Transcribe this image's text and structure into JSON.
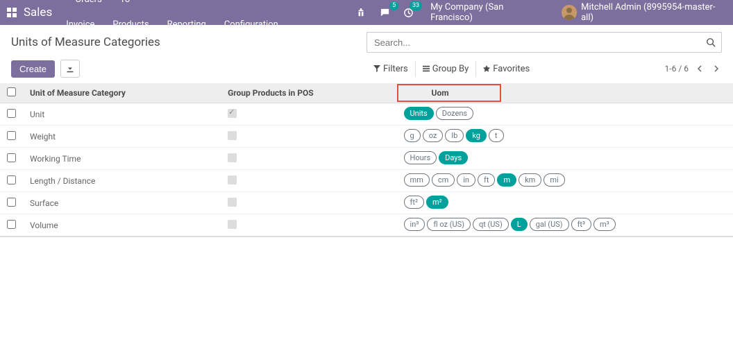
{
  "navbar": {
    "brand": "Sales",
    "links": [
      "Orders",
      "To Invoice",
      "Products",
      "Reporting",
      "Configuration"
    ],
    "messages_badge": "5",
    "activities_badge": "33",
    "company": "My Company (San Francisco)",
    "user": "Mitchell Admin (8995954-master-all)"
  },
  "page": {
    "title": "Units of Measure Categories",
    "search_placeholder": "Search..."
  },
  "controls": {
    "create": "Create",
    "filters": "Filters",
    "group_by": "Group By",
    "favorites": "Favorites",
    "pager_text": "1-6 / 6"
  },
  "table": {
    "headers": {
      "category": "Unit of Measure Category",
      "group_pos": "Group Products in POS",
      "uom": "Uom"
    },
    "rows": [
      {
        "name": "Unit",
        "grouped": true,
        "uoms": [
          {
            "label": "Units",
            "filled": true
          },
          {
            "label": "Dozens",
            "filled": false
          }
        ]
      },
      {
        "name": "Weight",
        "grouped": false,
        "uoms": [
          {
            "label": "g",
            "filled": false
          },
          {
            "label": "oz",
            "filled": false
          },
          {
            "label": "lb",
            "filled": false
          },
          {
            "label": "kg",
            "filled": true
          },
          {
            "label": "t",
            "filled": false
          }
        ]
      },
      {
        "name": "Working Time",
        "grouped": false,
        "uoms": [
          {
            "label": "Hours",
            "filled": false
          },
          {
            "label": "Days",
            "filled": true
          }
        ]
      },
      {
        "name": "Length / Distance",
        "grouped": false,
        "uoms": [
          {
            "label": "mm",
            "filled": false
          },
          {
            "label": "cm",
            "filled": false
          },
          {
            "label": "in",
            "filled": false
          },
          {
            "label": "ft",
            "filled": false
          },
          {
            "label": "m",
            "filled": true
          },
          {
            "label": "km",
            "filled": false
          },
          {
            "label": "mi",
            "filled": false
          }
        ]
      },
      {
        "name": "Surface",
        "grouped": false,
        "uoms": [
          {
            "label": "ft²",
            "filled": false
          },
          {
            "label": "m²",
            "filled": true
          }
        ]
      },
      {
        "name": "Volume",
        "grouped": false,
        "uoms": [
          {
            "label": "in³",
            "filled": false
          },
          {
            "label": "fl oz (US)",
            "filled": false
          },
          {
            "label": "qt (US)",
            "filled": false
          },
          {
            "label": "L",
            "filled": true
          },
          {
            "label": "gal (US)",
            "filled": false
          },
          {
            "label": "ft³",
            "filled": false
          },
          {
            "label": "m³",
            "filled": false
          }
        ]
      }
    ]
  },
  "colors": {
    "navbar_bg": "#7c6f9e",
    "accent_teal": "#00a09d",
    "highlight_border": "#e74c3c",
    "header_row_bg": "#eeeeee",
    "text_primary": "#4c4c4c",
    "text_secondary": "#666666",
    "tag_border": "#6c757d"
  }
}
